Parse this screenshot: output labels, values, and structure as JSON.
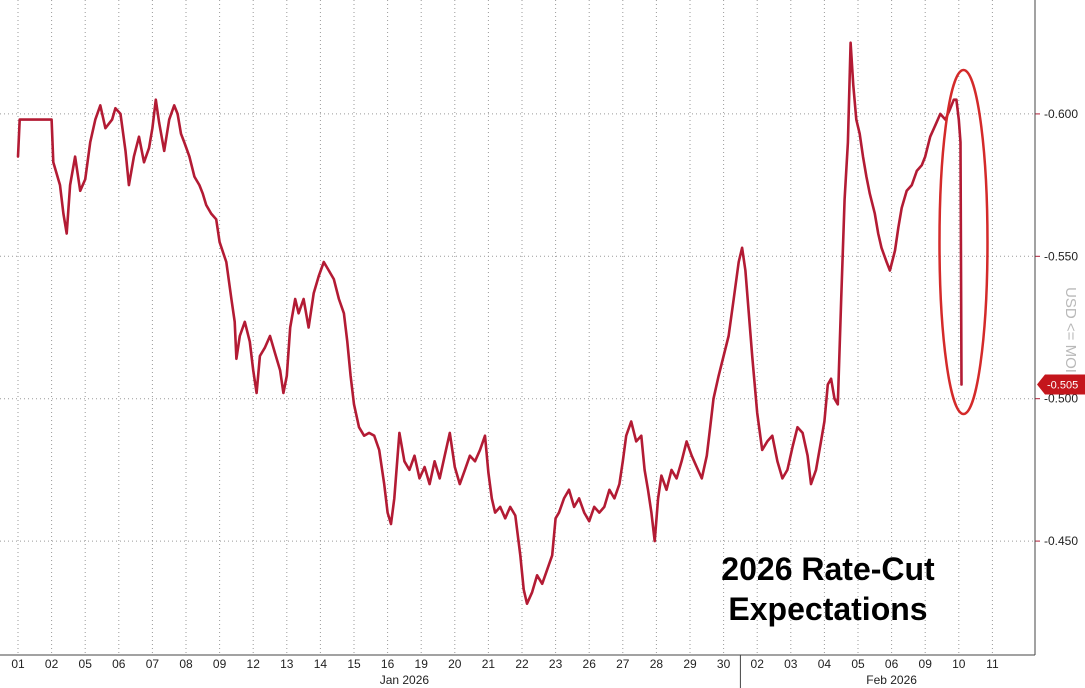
{
  "chart_data": {
    "type": "line",
    "title": "2026 Rate-Cut Expectations",
    "ylabel": "USD <= MOI",
    "y_axis_side": "right",
    "y_inverted": true,
    "ylim": [
      0.41,
      0.64
    ],
    "yticks": [
      "-0.600",
      "-0.550",
      "-0.500",
      "-0.450"
    ],
    "ytick_values": [
      0.6,
      0.55,
      0.5,
      0.45
    ],
    "last_value_label": "-0.505",
    "last_value": 0.505,
    "months": [
      {
        "label": "Jan 2026",
        "start_day": 2,
        "end_day": 21
      },
      {
        "label": "Feb 2026",
        "start_day": 22,
        "end_day": 30
      }
    ],
    "day_labels": [
      "01",
      "02",
      "05",
      "06",
      "07",
      "08",
      "09",
      "12",
      "13",
      "14",
      "15",
      "16",
      "19",
      "20",
      "21",
      "22",
      "23",
      "26",
      "27",
      "28",
      "29",
      "30",
      "02",
      "03",
      "04",
      "05",
      "06",
      "09",
      "10",
      "11"
    ],
    "grid": true,
    "color": "#b31b34",
    "annotation": "ellipse around final drop",
    "series": [
      {
        "points": [
          [
            0.0,
            0.585
          ],
          [
            0.05,
            0.598
          ],
          [
            0.3,
            0.598
          ],
          [
            0.55,
            0.598
          ],
          [
            1.0,
            0.598
          ],
          [
            1.05,
            0.583
          ],
          [
            1.25,
            0.575
          ],
          [
            1.35,
            0.565
          ],
          [
            1.45,
            0.558
          ],
          [
            1.55,
            0.575
          ],
          [
            1.7,
            0.585
          ],
          [
            1.85,
            0.573
          ],
          [
            2.0,
            0.577
          ],
          [
            2.15,
            0.59
          ],
          [
            2.3,
            0.598
          ],
          [
            2.45,
            0.603
          ],
          [
            2.6,
            0.595
          ],
          [
            2.8,
            0.598
          ],
          [
            2.9,
            0.602
          ],
          [
            3.05,
            0.6
          ],
          [
            3.2,
            0.587
          ],
          [
            3.3,
            0.575
          ],
          [
            3.45,
            0.585
          ],
          [
            3.6,
            0.592
          ],
          [
            3.75,
            0.583
          ],
          [
            3.9,
            0.588
          ],
          [
            4.0,
            0.595
          ],
          [
            4.1,
            0.605
          ],
          [
            4.2,
            0.597
          ],
          [
            4.35,
            0.587
          ],
          [
            4.5,
            0.598
          ],
          [
            4.65,
            0.603
          ],
          [
            4.75,
            0.6
          ],
          [
            4.85,
            0.593
          ],
          [
            4.95,
            0.59
          ],
          [
            5.1,
            0.585
          ],
          [
            5.25,
            0.578
          ],
          [
            5.4,
            0.575
          ],
          [
            5.5,
            0.572
          ],
          [
            5.6,
            0.568
          ],
          [
            5.75,
            0.565
          ],
          [
            5.9,
            0.563
          ],
          [
            6.0,
            0.555
          ],
          [
            6.2,
            0.548
          ],
          [
            6.35,
            0.535
          ],
          [
            6.45,
            0.527
          ],
          [
            6.5,
            0.514
          ],
          [
            6.6,
            0.522
          ],
          [
            6.75,
            0.527
          ],
          [
            6.9,
            0.52
          ],
          [
            7.0,
            0.51
          ],
          [
            7.1,
            0.502
          ],
          [
            7.2,
            0.515
          ],
          [
            7.35,
            0.518
          ],
          [
            7.5,
            0.522
          ],
          [
            7.65,
            0.516
          ],
          [
            7.8,
            0.51
          ],
          [
            7.9,
            0.502
          ],
          [
            8.0,
            0.508
          ],
          [
            8.1,
            0.525
          ],
          [
            8.25,
            0.535
          ],
          [
            8.35,
            0.53
          ],
          [
            8.5,
            0.535
          ],
          [
            8.65,
            0.525
          ],
          [
            8.8,
            0.537
          ],
          [
            8.95,
            0.543
          ],
          [
            9.1,
            0.548
          ],
          [
            9.25,
            0.545
          ],
          [
            9.4,
            0.542
          ],
          [
            9.55,
            0.535
          ],
          [
            9.7,
            0.53
          ],
          [
            9.8,
            0.52
          ],
          [
            9.9,
            0.508
          ],
          [
            10.0,
            0.498
          ],
          [
            10.15,
            0.49
          ],
          [
            10.3,
            0.487
          ],
          [
            10.45,
            0.488
          ],
          [
            10.6,
            0.487
          ],
          [
            10.75,
            0.482
          ],
          [
            10.9,
            0.47
          ],
          [
            11.0,
            0.46
          ],
          [
            11.1,
            0.456
          ],
          [
            11.2,
            0.465
          ],
          [
            11.35,
            0.488
          ],
          [
            11.5,
            0.478
          ],
          [
            11.65,
            0.475
          ],
          [
            11.8,
            0.48
          ],
          [
            11.95,
            0.472
          ],
          [
            12.1,
            0.476
          ],
          [
            12.25,
            0.47
          ],
          [
            12.4,
            0.478
          ],
          [
            12.55,
            0.472
          ],
          [
            12.7,
            0.48
          ],
          [
            12.85,
            0.488
          ],
          [
            13.0,
            0.476
          ],
          [
            13.15,
            0.47
          ],
          [
            13.3,
            0.475
          ],
          [
            13.45,
            0.48
          ],
          [
            13.6,
            0.478
          ],
          [
            13.75,
            0.482
          ],
          [
            13.9,
            0.487
          ],
          [
            14.0,
            0.474
          ],
          [
            14.1,
            0.465
          ],
          [
            14.2,
            0.46
          ],
          [
            14.35,
            0.462
          ],
          [
            14.5,
            0.458
          ],
          [
            14.65,
            0.462
          ],
          [
            14.8,
            0.459
          ],
          [
            14.95,
            0.445
          ],
          [
            15.05,
            0.433
          ],
          [
            15.15,
            0.428
          ],
          [
            15.3,
            0.432
          ],
          [
            15.45,
            0.438
          ],
          [
            15.6,
            0.435
          ],
          [
            15.75,
            0.44
          ],
          [
            15.9,
            0.445
          ],
          [
            16.0,
            0.458
          ],
          [
            16.1,
            0.46
          ],
          [
            16.25,
            0.465
          ],
          [
            16.4,
            0.468
          ],
          [
            16.55,
            0.462
          ],
          [
            16.7,
            0.465
          ],
          [
            16.85,
            0.46
          ],
          [
            17.0,
            0.457
          ],
          [
            17.15,
            0.462
          ],
          [
            17.3,
            0.46
          ],
          [
            17.45,
            0.462
          ],
          [
            17.6,
            0.468
          ],
          [
            17.75,
            0.465
          ],
          [
            17.9,
            0.47
          ],
          [
            18.0,
            0.478
          ],
          [
            18.1,
            0.487
          ],
          [
            18.25,
            0.492
          ],
          [
            18.4,
            0.485
          ],
          [
            18.55,
            0.487
          ],
          [
            18.65,
            0.475
          ],
          [
            18.75,
            0.468
          ],
          [
            18.85,
            0.46
          ],
          [
            18.95,
            0.45
          ],
          [
            19.05,
            0.465
          ],
          [
            19.15,
            0.473
          ],
          [
            19.3,
            0.468
          ],
          [
            19.45,
            0.475
          ],
          [
            19.6,
            0.472
          ],
          [
            19.75,
            0.478
          ],
          [
            19.9,
            0.485
          ],
          [
            20.05,
            0.48
          ],
          [
            20.2,
            0.476
          ],
          [
            20.35,
            0.472
          ],
          [
            20.5,
            0.48
          ],
          [
            20.6,
            0.49
          ],
          [
            20.7,
            0.5
          ],
          [
            20.85,
            0.508
          ],
          [
            21.0,
            0.515
          ],
          [
            21.15,
            0.522
          ],
          [
            21.3,
            0.535
          ],
          [
            21.45,
            0.548
          ],
          [
            21.55,
            0.553
          ],
          [
            21.65,
            0.545
          ],
          [
            21.75,
            0.53
          ],
          [
            21.85,
            0.515
          ],
          [
            22.0,
            0.495
          ],
          [
            22.15,
            0.482
          ],
          [
            22.3,
            0.485
          ],
          [
            22.45,
            0.487
          ],
          [
            22.6,
            0.478
          ],
          [
            22.75,
            0.472
          ],
          [
            22.9,
            0.475
          ],
          [
            23.05,
            0.483
          ],
          [
            23.2,
            0.49
          ],
          [
            23.35,
            0.488
          ],
          [
            23.5,
            0.48
          ],
          [
            23.6,
            0.47
          ],
          [
            23.75,
            0.475
          ],
          [
            23.9,
            0.485
          ],
          [
            24.0,
            0.492
          ],
          [
            24.1,
            0.505
          ],
          [
            24.2,
            0.507
          ],
          [
            24.3,
            0.5
          ],
          [
            24.4,
            0.498
          ],
          [
            24.5,
            0.535
          ],
          [
            24.6,
            0.57
          ],
          [
            24.7,
            0.59
          ],
          [
            24.78,
            0.625
          ],
          [
            24.86,
            0.61
          ],
          [
            24.95,
            0.598
          ],
          [
            25.05,
            0.593
          ],
          [
            25.15,
            0.585
          ],
          [
            25.25,
            0.578
          ],
          [
            25.35,
            0.572
          ],
          [
            25.5,
            0.565
          ],
          [
            25.6,
            0.558
          ],
          [
            25.7,
            0.553
          ],
          [
            25.85,
            0.548
          ],
          [
            25.95,
            0.545
          ],
          [
            26.1,
            0.552
          ],
          [
            26.2,
            0.56
          ],
          [
            26.3,
            0.567
          ],
          [
            26.45,
            0.573
          ],
          [
            26.6,
            0.575
          ],
          [
            26.75,
            0.58
          ],
          [
            26.9,
            0.582
          ],
          [
            27.0,
            0.585
          ],
          [
            27.15,
            0.592
          ],
          [
            27.3,
            0.596
          ],
          [
            27.45,
            0.6
          ],
          [
            27.6,
            0.598
          ],
          [
            27.75,
            0.602
          ],
          [
            27.85,
            0.605
          ],
          [
            27.93,
            0.605
          ],
          [
            28.0,
            0.598
          ],
          [
            28.05,
            0.59
          ],
          [
            28.08,
            0.505
          ]
        ]
      }
    ]
  }
}
